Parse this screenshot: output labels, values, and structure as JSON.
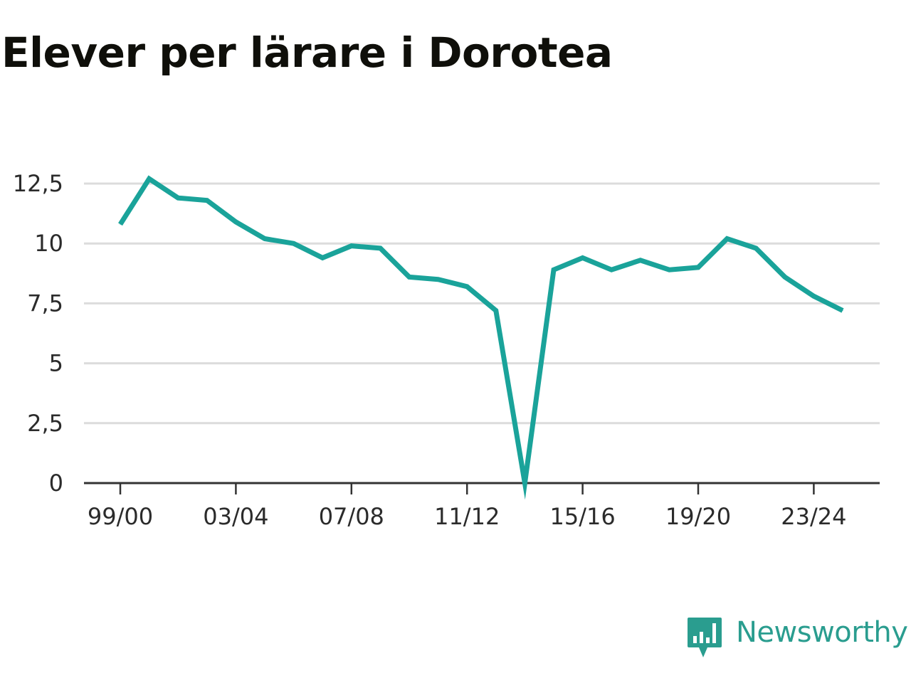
{
  "title": "Elever per lärare i Dorotea",
  "brand": {
    "name": "Newsworthy",
    "icon": "newsworthy-logo-icon",
    "color": "#2a9d8f"
  },
  "chart_data": {
    "type": "line",
    "title": "Elever per lärare i Dorotea",
    "xlabel": "",
    "ylabel": "",
    "ylim": [
      0,
      12.5
    ],
    "yticks": [
      0,
      2.5,
      5,
      7.5,
      10,
      12.5
    ],
    "ytick_labels": [
      "0",
      "2,5",
      "5",
      "7,5",
      "10",
      "12,5"
    ],
    "x": [
      "99/00",
      "00/01",
      "01/02",
      "02/03",
      "03/04",
      "04/05",
      "05/06",
      "06/07",
      "07/08",
      "08/09",
      "09/10",
      "10/11",
      "11/12",
      "12/13",
      "13/14",
      "14/15",
      "15/16",
      "16/17",
      "17/18",
      "18/19",
      "19/20",
      "20/21",
      "21/22",
      "22/23",
      "23/24",
      "24/25"
    ],
    "xtick_labels": [
      "99/00",
      "03/04",
      "07/08",
      "11/12",
      "15/16",
      "19/20",
      "23/24"
    ],
    "series": [
      {
        "values": [
          10.8,
          12.7,
          11.9,
          11.8,
          10.9,
          10.2,
          10.0,
          9.4,
          9.9,
          9.8,
          8.6,
          8.5,
          8.2,
          7.2,
          0.0,
          8.9,
          9.4,
          8.9,
          9.3,
          8.9,
          9.0,
          10.2,
          9.8,
          8.6,
          7.8,
          7.2
        ]
      }
    ],
    "grid": true,
    "color": "#1aa39a"
  }
}
